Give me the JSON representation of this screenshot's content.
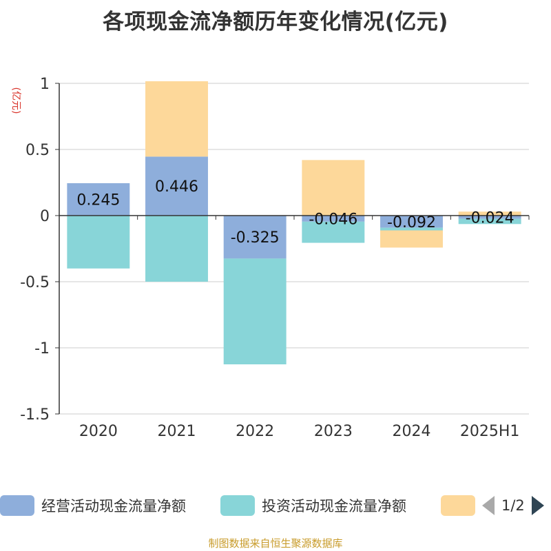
{
  "title": "各项现金流净额历年变化情况(亿元)",
  "unit": "(亿元)",
  "source": "制图数据来自恒生聚源数据库",
  "legend_page": "1/2",
  "chart_data": {
    "type": "bar",
    "stacked": true,
    "categories": [
      "2020",
      "2021",
      "2022",
      "2023",
      "2024",
      "2025H1"
    ],
    "ylim": [
      -1.5,
      1
    ],
    "yticks": [
      1,
      0.5,
      0,
      -0.5,
      -1,
      -1.5
    ],
    "ytick_labels": [
      "1",
      "0.5",
      "0",
      "-0.5",
      "-1",
      "-1.5"
    ],
    "grid": true,
    "legend_position": "bottom",
    "series": [
      {
        "name": "经营活动现金流量净额",
        "color": "#8eaedb",
        "values": [
          0.245,
          0.446,
          -0.325,
          -0.046,
          -0.092,
          -0.024
        ],
        "labels": [
          "0.245",
          "0.446",
          "-0.325",
          "-0.046",
          "-0.092",
          "-0.024"
        ]
      },
      {
        "name": "投资活动现金流量净额",
        "color": "#88d5d8",
        "values": [
          -0.4,
          -0.5,
          -0.8,
          -0.16,
          -0.02,
          -0.04
        ]
      },
      {
        "name": "",
        "color": "#fdd89a",
        "values": [
          0,
          0.57,
          0,
          0.42,
          -0.13,
          0.03
        ]
      }
    ]
  }
}
